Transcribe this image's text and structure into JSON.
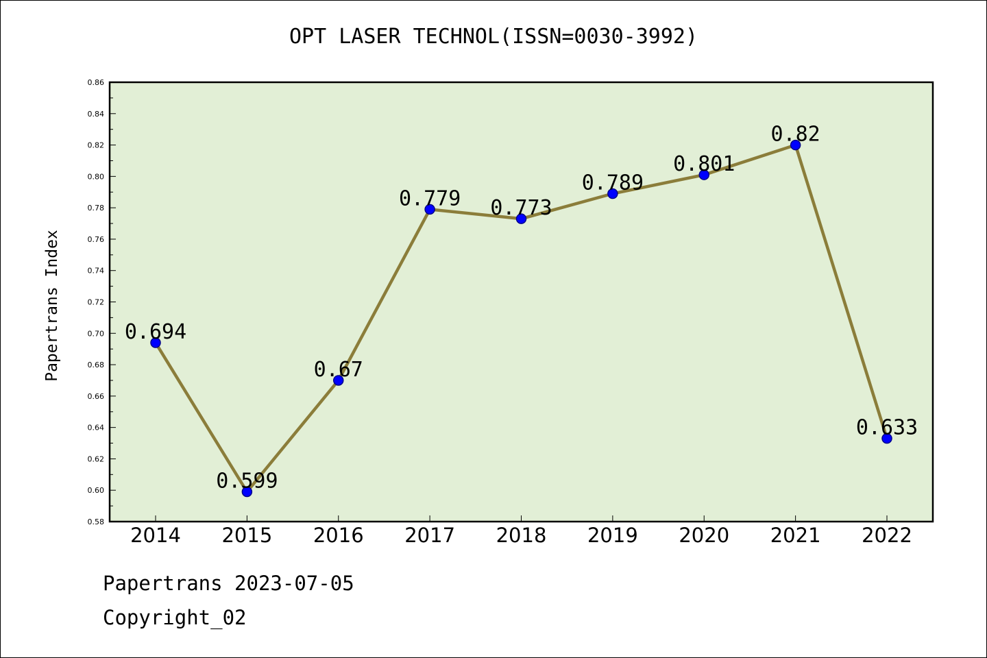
{
  "title": "OPT LASER TECHNOL(ISSN=0030-3992)",
  "footer": {
    "line1": "Papertrans 2023-07-05",
    "line2": "Copyright_02"
  },
  "chart_data": {
    "type": "line",
    "title": "OPT LASER TECHNOL(ISSN=0030-3992)",
    "xlabel": "",
    "ylabel": "Papertrans Index",
    "categories": [
      "2014",
      "2015",
      "2016",
      "2017",
      "2018",
      "2019",
      "2020",
      "2021",
      "2022"
    ],
    "values": [
      0.694,
      0.599,
      0.67,
      0.779,
      0.773,
      0.789,
      0.801,
      0.82,
      0.633
    ],
    "data_labels": [
      "0.694",
      "0.599",
      "0.67",
      "0.779",
      "0.773",
      "0.789",
      "0.801",
      "0.82",
      "0.633"
    ],
    "ylim": [
      0.58,
      0.86
    ],
    "y_ticks": [
      "0.58",
      "0.60",
      "0.62",
      "0.64",
      "0.66",
      "0.68",
      "0.70",
      "0.72",
      "0.74",
      "0.76",
      "0.78",
      "0.80",
      "0.82",
      "0.84",
      "0.86"
    ],
    "grid": false,
    "colors": {
      "plot_background": "#e2efd6",
      "line": "#8b7d3a",
      "marker_fill": "#0000ff",
      "marker_edge": "#00008b"
    }
  }
}
